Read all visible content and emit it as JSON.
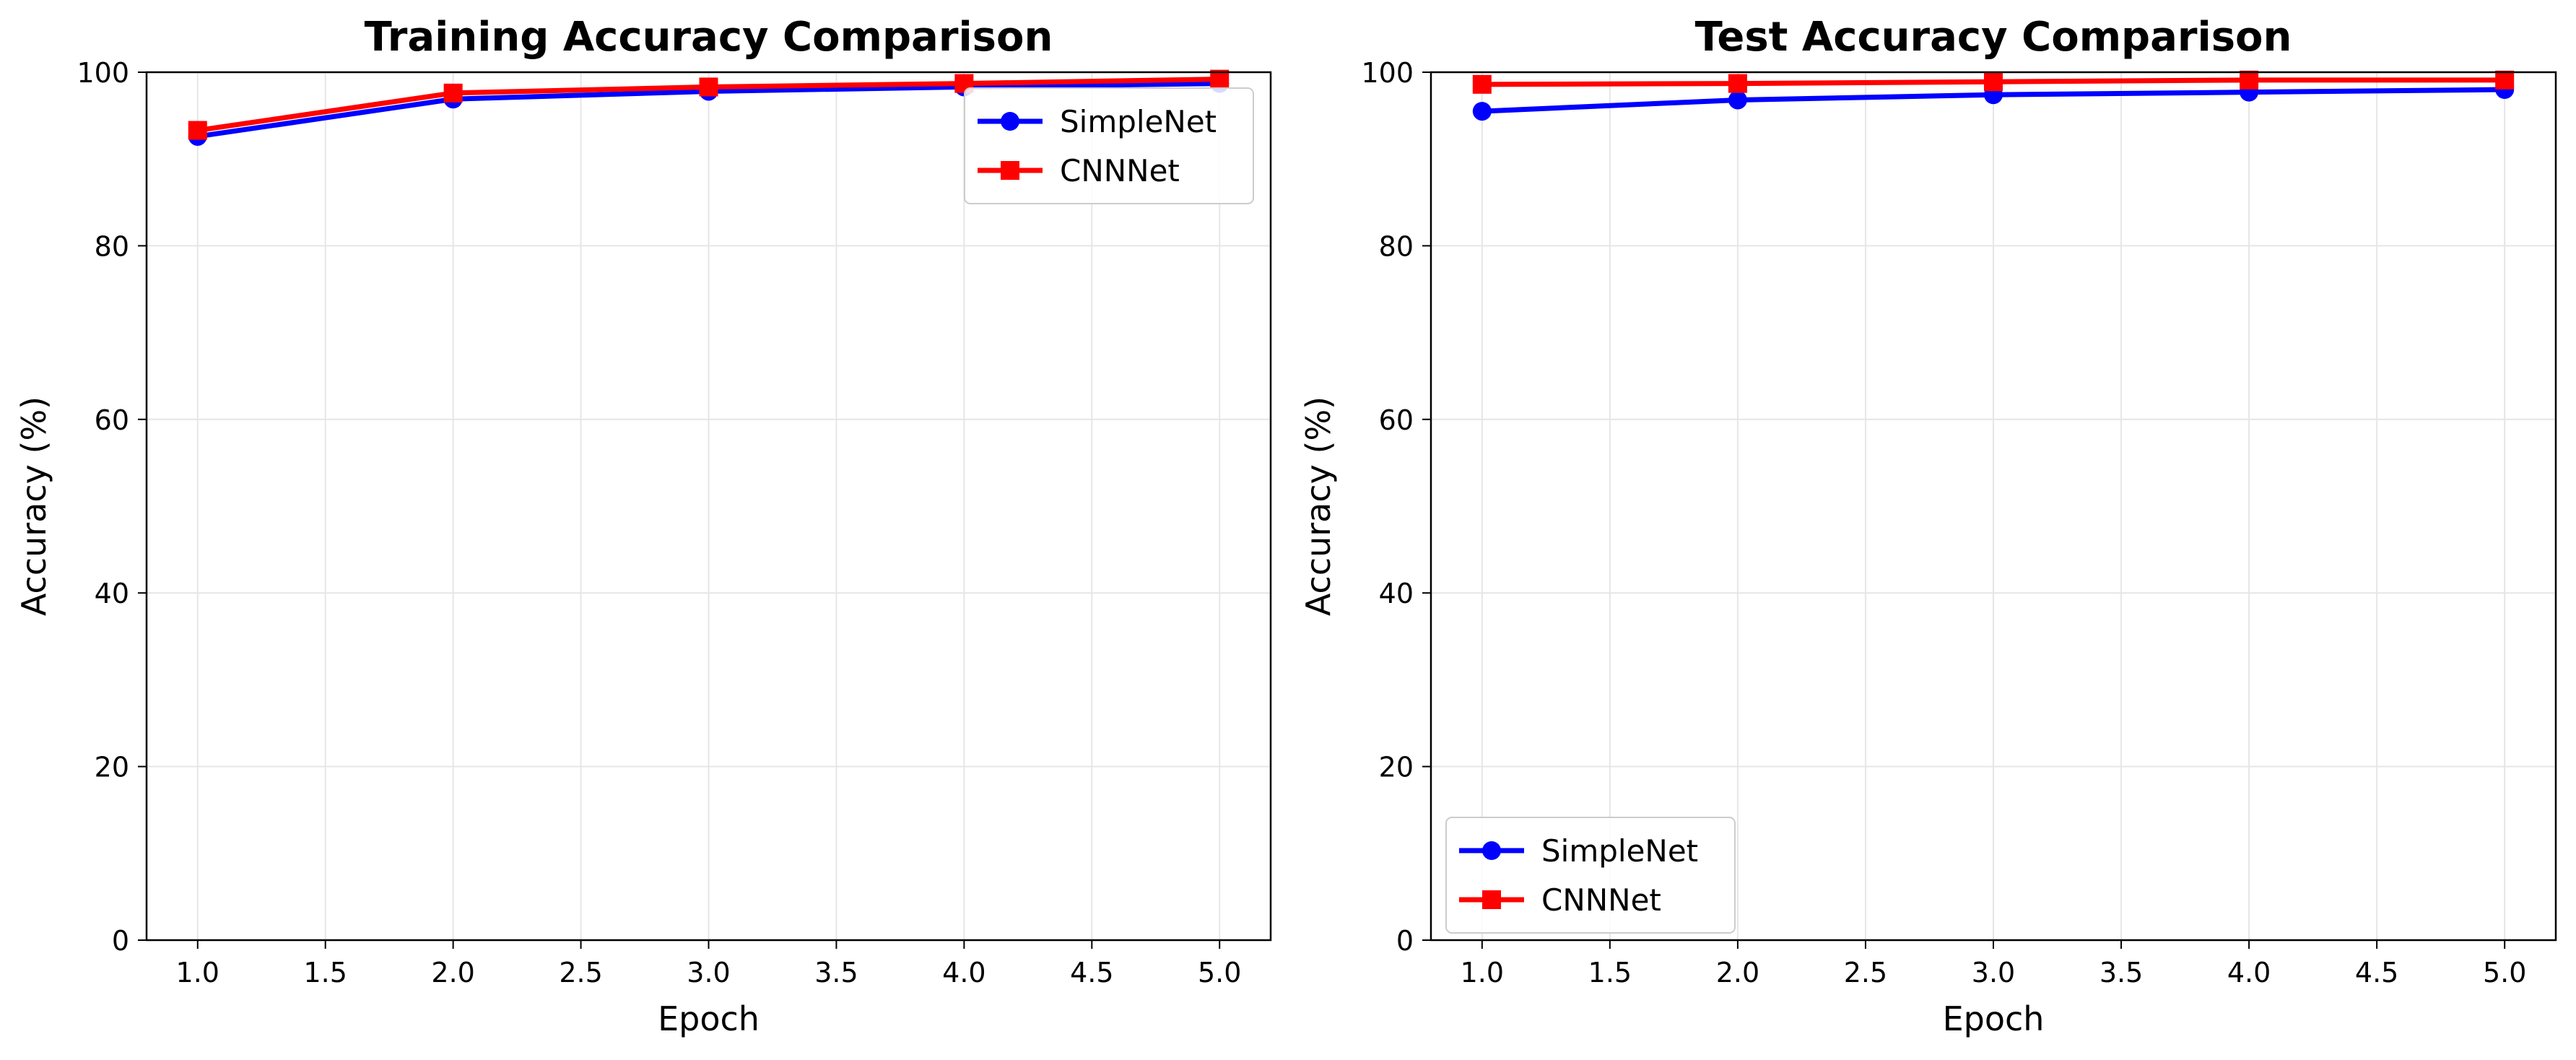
{
  "colors": {
    "SimpleNet": "#0000ff",
    "CNNNet": "#ff0000",
    "grid": "#e6e6e6",
    "axes": "#000000"
  },
  "chart_data": [
    {
      "type": "line",
      "title": "Training Accuracy Comparison",
      "xlabel": "Epoch",
      "ylabel": "Accuracy (%)",
      "xlim": [
        0.8,
        5.2
      ],
      "ylim": [
        0,
        100
      ],
      "xticks": [
        "1.0",
        "1.5",
        "2.0",
        "2.5",
        "3.0",
        "3.5",
        "4.0",
        "4.5",
        "5.0"
      ],
      "yticks": [
        "0",
        "20",
        "40",
        "60",
        "80",
        "100"
      ],
      "grid": true,
      "legend": "top-right",
      "x": [
        1,
        2,
        3,
        4,
        5
      ],
      "series": [
        {
          "name": "SimpleNet",
          "marker": "circle",
          "values": [
            92.6,
            96.9,
            97.8,
            98.3,
            98.7
          ]
        },
        {
          "name": "CNNNet",
          "marker": "square",
          "values": [
            93.3,
            97.6,
            98.3,
            98.7,
            99.2
          ]
        }
      ]
    },
    {
      "type": "line",
      "title": "Test Accuracy Comparison",
      "xlabel": "Epoch",
      "ylabel": "Accuracy (%)",
      "xlim": [
        0.8,
        5.2
      ],
      "ylim": [
        0,
        100
      ],
      "xticks": [
        "1.0",
        "1.5",
        "2.0",
        "2.5",
        "3.0",
        "3.5",
        "4.0",
        "4.5",
        "5.0"
      ],
      "yticks": [
        "0",
        "20",
        "40",
        "60",
        "80",
        "100"
      ],
      "grid": true,
      "legend": "bottom-left",
      "x": [
        1,
        2,
        3,
        4,
        5
      ],
      "series": [
        {
          "name": "SimpleNet",
          "marker": "circle",
          "values": [
            95.5,
            96.8,
            97.4,
            97.7,
            98.0
          ]
        },
        {
          "name": "CNNNet",
          "marker": "square",
          "values": [
            98.6,
            98.7,
            98.9,
            99.1,
            99.1
          ]
        }
      ]
    }
  ]
}
